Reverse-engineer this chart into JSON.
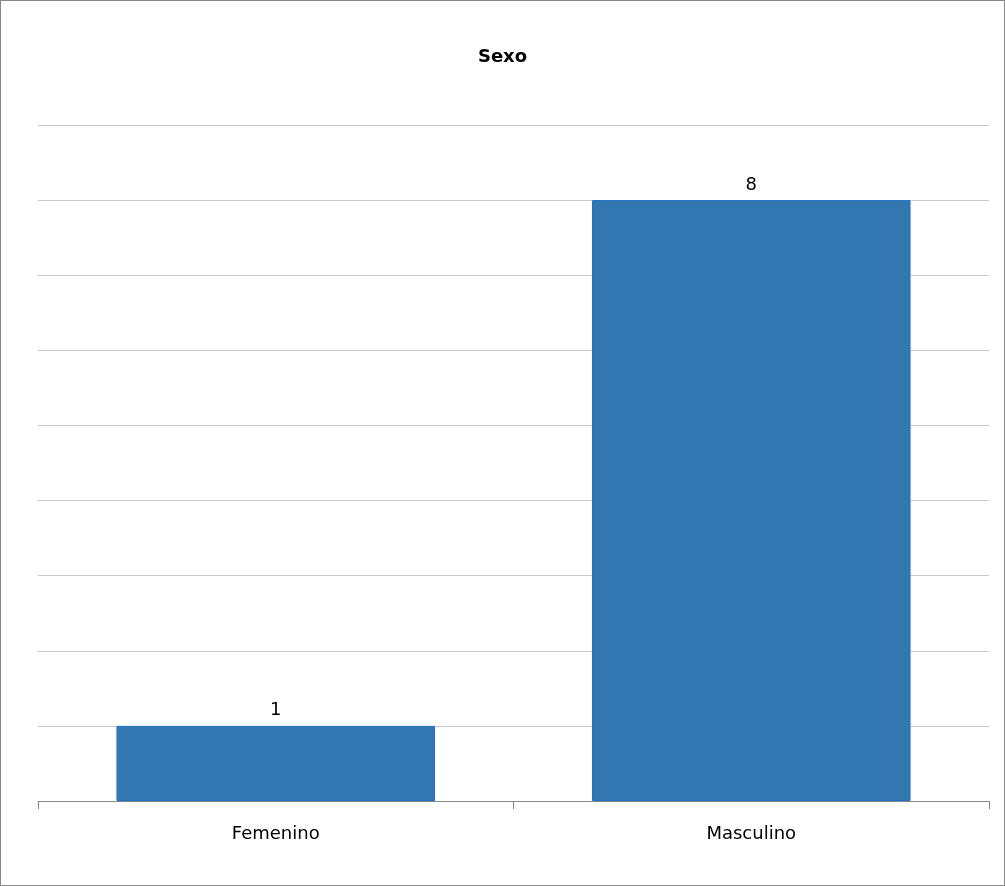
{
  "chart_data": {
    "type": "bar",
    "title": "Sexo",
    "categories": [
      "Femenino",
      "Masculino"
    ],
    "values": [
      1,
      8
    ],
    "color": "#3277b0",
    "grid": "y",
    "tick_labels": "x",
    "data_labels": true
  }
}
